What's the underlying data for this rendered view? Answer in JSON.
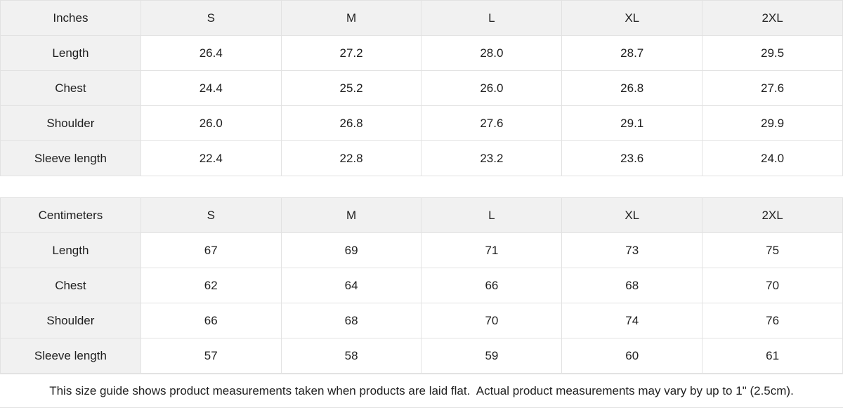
{
  "tables": [
    {
      "unit_label": "Inches",
      "sizes": [
        "S",
        "M",
        "L",
        "XL",
        "2XL"
      ],
      "rows": [
        {
          "label": "Length",
          "values": [
            "26.4",
            "27.2",
            "28.0",
            "28.7",
            "29.5"
          ]
        },
        {
          "label": "Chest",
          "values": [
            "24.4",
            "25.2",
            "26.0",
            "26.8",
            "27.6"
          ]
        },
        {
          "label": "Shoulder",
          "values": [
            "26.0",
            "26.8",
            "27.6",
            "29.1",
            "29.9"
          ]
        },
        {
          "label": "Sleeve length",
          "values": [
            "22.4",
            "22.8",
            "23.2",
            "23.6",
            "24.0"
          ]
        }
      ]
    },
    {
      "unit_label": "Centimeters",
      "sizes": [
        "S",
        "M",
        "L",
        "XL",
        "2XL"
      ],
      "rows": [
        {
          "label": "Length",
          "values": [
            "67",
            "69",
            "71",
            "73",
            "75"
          ]
        },
        {
          "label": "Chest",
          "values": [
            "62",
            "64",
            "66",
            "68",
            "70"
          ]
        },
        {
          "label": "Shoulder",
          "values": [
            "66",
            "68",
            "70",
            "74",
            "76"
          ]
        },
        {
          "label": "Sleeve length",
          "values": [
            "57",
            "58",
            "59",
            "60",
            "61"
          ]
        }
      ]
    }
  ],
  "footer": {
    "note": "This size guide shows product measurements taken when products are laid flat.  Actual product measurements may vary by up to 1\" (2.5cm)."
  },
  "colors": {
    "shaded_cell_bg": "#f1f1f1",
    "border": "#e2e2e2",
    "text": "#1f1f1f"
  }
}
